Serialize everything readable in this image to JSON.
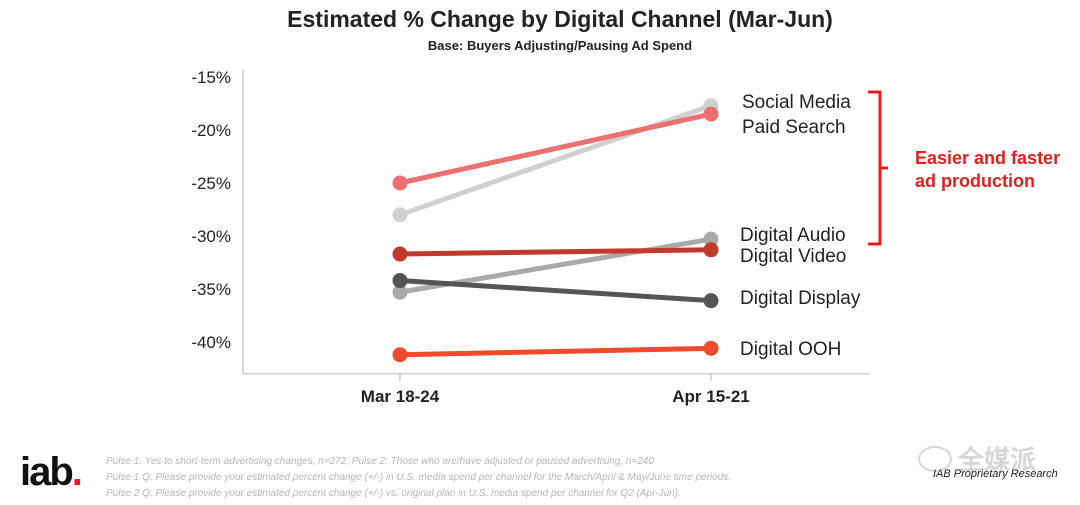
{
  "chart_data": {
    "type": "line",
    "title": "Estimated % Change by Digital Channel (Mar-Jun)",
    "subtitle": "Base:  Buyers Adjusting/Pausing Ad Spend",
    "categories": [
      "Mar 18-24",
      "Apr 15-21"
    ],
    "ylim": [
      -43,
      -15
    ],
    "yticks": [
      -15,
      -20,
      -25,
      -30,
      -35,
      -40
    ],
    "ytick_labels": [
      "-15%",
      "-20%",
      "-25%",
      "-30%",
      "-35%",
      "-40%"
    ],
    "series": [
      {
        "name": "Social Media",
        "values": [
          -28.0,
          -17.7
        ],
        "color": "#d0d0d0"
      },
      {
        "name": "Paid Search",
        "values": [
          -25.0,
          -18.5
        ],
        "color": "#ed7070"
      },
      {
        "name": "Digital Audio",
        "values": [
          -35.3,
          -30.3
        ],
        "color": "#a9a9a9"
      },
      {
        "name": "Digital Video",
        "values": [
          -31.7,
          -31.3
        ],
        "color": "#c0392b"
      },
      {
        "name": "Digital Display",
        "values": [
          -34.2,
          -36.1
        ],
        "color": "#555555"
      },
      {
        "name": "Digital OOH",
        "values": [
          -41.2,
          -40.6
        ],
        "color": "#ee4a2b"
      }
    ],
    "annotation": {
      "line1": "Easier and faster",
      "line2": "ad production",
      "color": "#e0201f"
    }
  },
  "footnotes": [
    "Pulse 1: Yes to short-term advertising changes, n=272; Pulse 2: Those who are/have adjusted or paused advertising, n=240",
    "Pulse 1 Q: Please provide your estimated percent change (+/-) in U.S. media spend per channel for the March/April & May/June time periods.",
    "Pulse 2 Q: Please provide your estimated percent change (+/-) vs. original plan in U.S. media spend per channel for Q2 (Apr-Jun)."
  ],
  "logo": {
    "text": "iab",
    "dot": "."
  },
  "proprietary": "IAB Proprietary Research",
  "watermark": "全媒派"
}
